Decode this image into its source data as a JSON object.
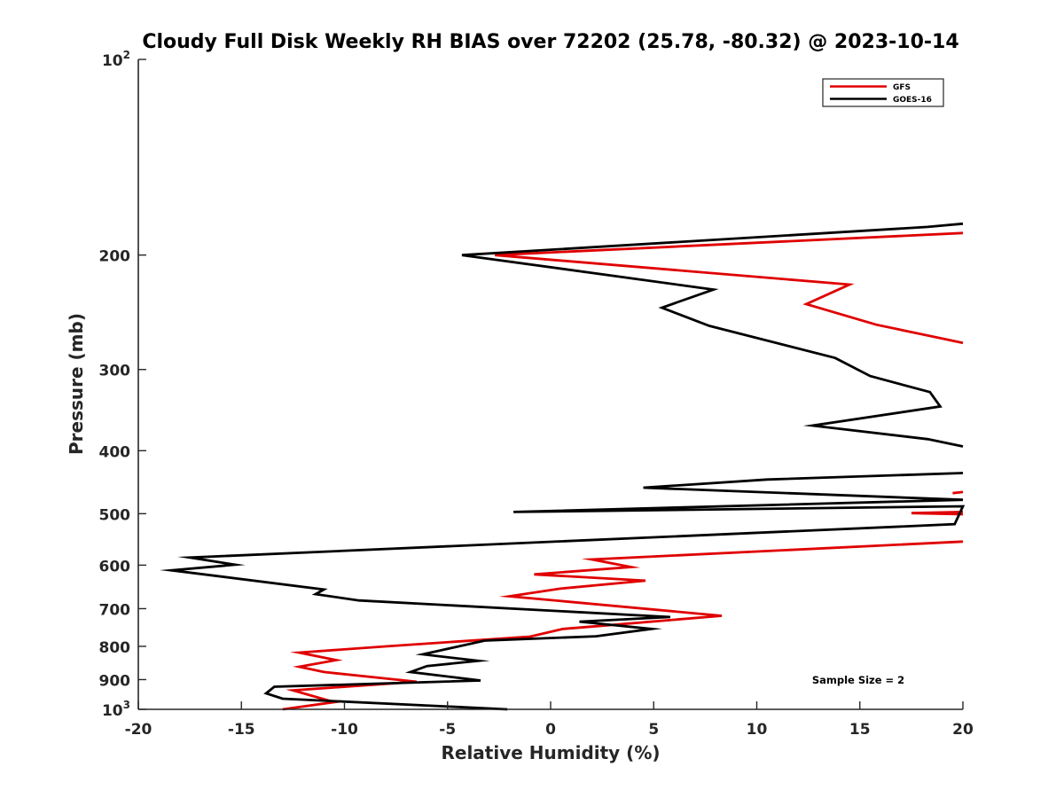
{
  "colors": {
    "gfs": "#e00000",
    "goes": "#000000",
    "axis": "#262626"
  },
  "chart_data": {
    "type": "line",
    "title": "Cloudy Full Disk Weekly RH BIAS over 72202 (25.78, -80.32) @ 2023-10-14",
    "xlabel": "Relative Humidity (%)",
    "ylabel": "Pressure (mb)",
    "xlim": [
      -20,
      20
    ],
    "ylim": [
      100,
      1000
    ],
    "yscale": "log",
    "y_reversed": true,
    "grid": false,
    "x_ticks": [
      -20,
      -15,
      -10,
      -5,
      0,
      5,
      10,
      15,
      20
    ],
    "x_tick_labels": [
      "-20",
      "-15",
      "-10",
      "-5",
      "0",
      "5",
      "10",
      "15",
      "20"
    ],
    "y_ticks": [
      {
        "value": 100,
        "label": "10",
        "sup": "2"
      },
      {
        "value": 200,
        "label": "200",
        "sup": ""
      },
      {
        "value": 300,
        "label": "300",
        "sup": ""
      },
      {
        "value": 400,
        "label": "400",
        "sup": ""
      },
      {
        "value": 500,
        "label": "500",
        "sup": ""
      },
      {
        "value": 600,
        "label": "600",
        "sup": ""
      },
      {
        "value": 700,
        "label": "700",
        "sup": ""
      },
      {
        "value": 800,
        "label": "800",
        "sup": ""
      },
      {
        "value": 900,
        "label": "900",
        "sup": ""
      },
      {
        "value": 1000,
        "label": "10",
        "sup": "3"
      }
    ],
    "legend_position": "top-right",
    "annotation": "Sample Size = 2",
    "series": [
      {
        "name": "GFS",
        "color": "#e00000",
        "segments": [
          [
            [
              20,
              185
            ],
            [
              -2.7,
              200
            ],
            [
              14.5,
              222
            ],
            [
              12.4,
              238
            ],
            [
              15.8,
              256
            ],
            [
              20,
              273
            ]
          ],
          [
            [
              20,
              463
            ],
            [
              19.5,
              465
            ]
          ],
          [
            [
              20,
              497
            ],
            [
              17.5,
              499
            ],
            [
              20,
              501
            ]
          ],
          [
            [
              20,
              552
            ],
            [
              2,
              588
            ],
            [
              3.9,
              604
            ],
            [
              -0.8,
              620
            ],
            [
              4.6,
              634
            ],
            [
              0.5,
              652
            ],
            [
              -2,
              670
            ],
            [
              8.3,
              718
            ],
            [
              2.2,
              745
            ],
            [
              0.6,
              752
            ],
            [
              -1,
              773
            ],
            [
              -8,
              800
            ],
            [
              -12.2,
              818
            ],
            [
              -10.4,
              840
            ],
            [
              -12.2,
              860
            ],
            [
              -11,
              876
            ],
            [
              -6.5,
              907
            ],
            [
              -12.5,
              935
            ],
            [
              -10.5,
              975
            ],
            [
              -13,
              1000
            ]
          ]
        ]
      },
      {
        "name": "GOES-16",
        "color": "#000000",
        "segments": [
          [
            [
              20,
              179
            ],
            [
              18.3,
              181
            ],
            [
              -4.3,
              200
            ],
            [
              7.9,
              226
            ],
            [
              5.4,
              241
            ],
            [
              7.7,
              257
            ],
            [
              13.8,
              288
            ],
            [
              15.5,
              307
            ],
            [
              18.4,
              325
            ],
            [
              18.9,
              342
            ],
            [
              12.7,
              366
            ],
            [
              18.3,
              384
            ],
            [
              20,
              394
            ]
          ],
          [
            [
              20,
              433
            ],
            [
              10.5,
              443
            ],
            [
              4.5,
              456
            ],
            [
              20,
              476
            ],
            [
              -1.8,
              497
            ],
            [
              20,
              487
            ],
            [
              19.6,
              519
            ],
            [
              -17.5,
              584
            ],
            [
              -15.3,
              599
            ],
            [
              -18.4,
              611
            ],
            [
              -11,
              654
            ],
            [
              -11.4,
              665
            ],
            [
              -9.3,
              680
            ],
            [
              5.8,
              721
            ],
            [
              1.4,
              733
            ],
            [
              4.9,
              752
            ],
            [
              2.2,
              772
            ],
            [
              -3.2,
              784
            ],
            [
              -6.2,
              823
            ],
            [
              -3.5,
              842
            ],
            [
              -6,
              858
            ],
            [
              -6.8,
              876
            ],
            [
              -3.4,
              903
            ],
            [
              -13.4,
              923
            ],
            [
              -13.8,
              945
            ],
            [
              -13,
              963
            ],
            [
              -2.1,
              1000
            ]
          ]
        ]
      }
    ]
  }
}
